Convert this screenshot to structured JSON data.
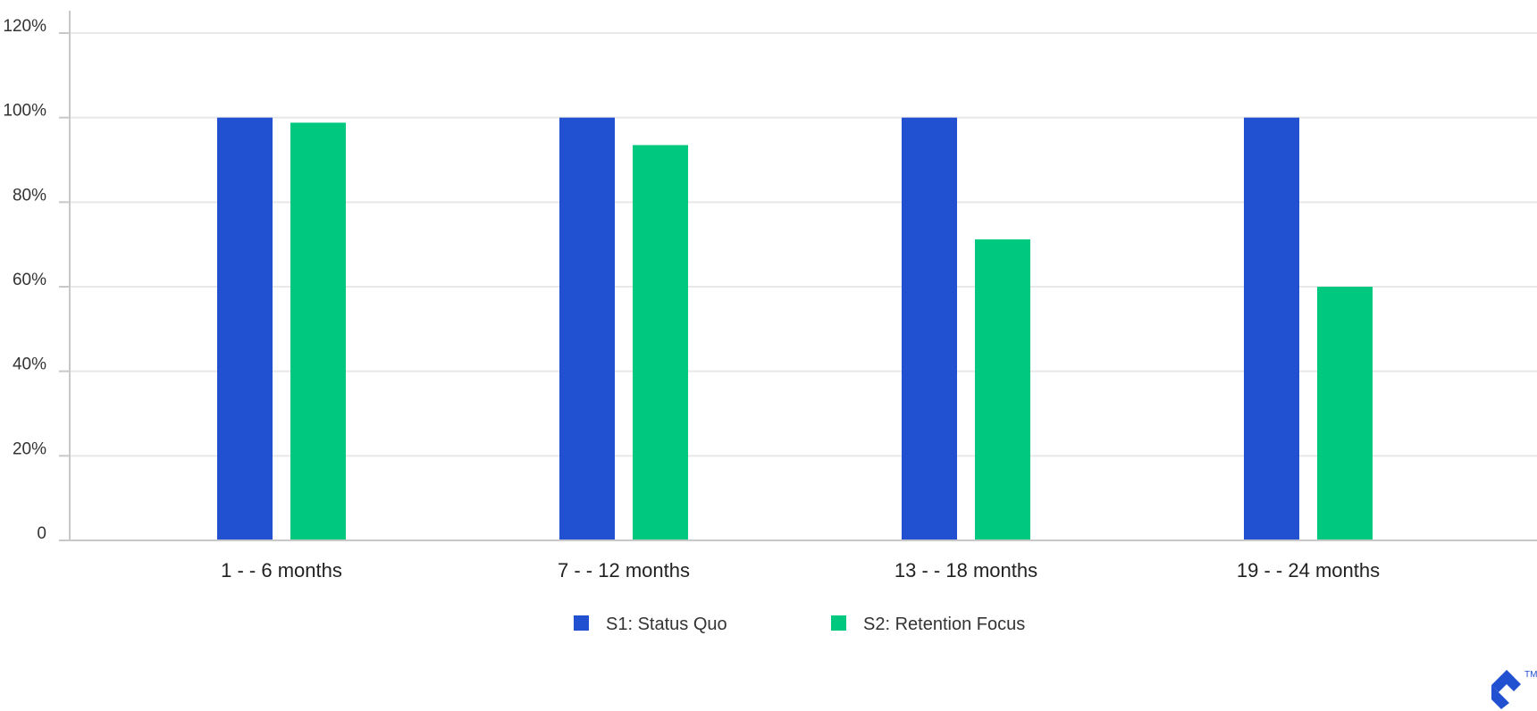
{
  "chart_data": {
    "type": "bar",
    "categories": [
      "1 - - 6 months",
      "7 - - 12 months",
      "13 - - 18 months",
      "19 - - 24 months"
    ],
    "series": [
      {
        "name": "S1: Status Quo",
        "values": [
          100,
          100,
          100,
          100
        ],
        "color": "#2150d0"
      },
      {
        "name": "S2: Retention Focus",
        "values": [
          98.8,
          93.5,
          71.2,
          60
        ],
        "color": "#00c97f"
      }
    ],
    "y_tick_labels": [
      "0",
      "20%",
      "40%",
      "60%",
      "80%",
      "100%",
      "120%"
    ],
    "y_tick_values": [
      0,
      20,
      40,
      60,
      80,
      100,
      120
    ],
    "ylim": [
      0,
      120
    ],
    "grid": true,
    "legend_position": "bottom-center"
  },
  "logo": {
    "icon": "toptal-logo-icon",
    "trademark": "TM"
  }
}
